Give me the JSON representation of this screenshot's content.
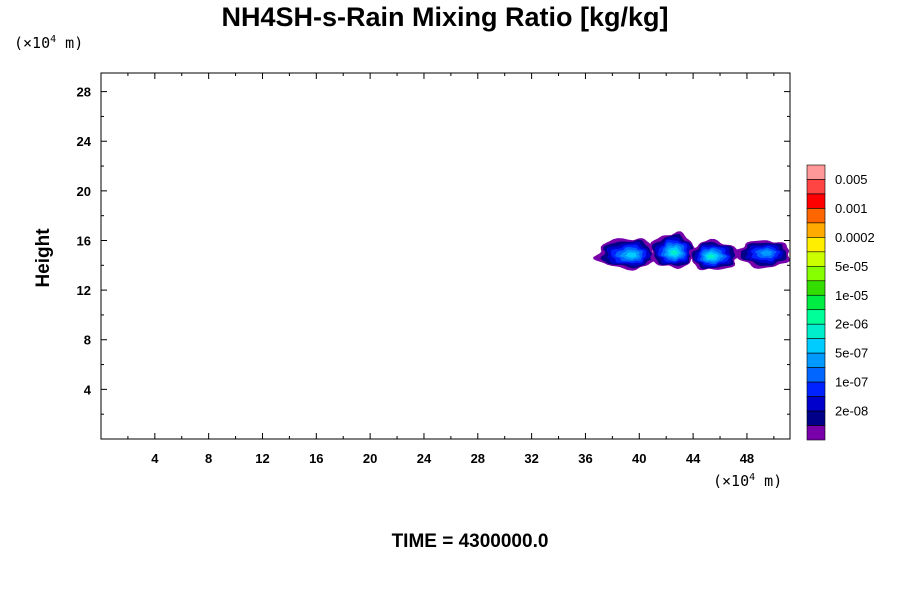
{
  "title": "NH4SH-s-Rain Mixing Ratio [kg/kg]",
  "y_unit_prefix": "(×10",
  "y_unit_exp": "4",
  "y_unit_suffix": " m)",
  "x_unit_prefix": "(×10",
  "x_unit_exp": "4",
  "x_unit_suffix": " m)",
  "ylabel": "Height",
  "time_label": "TIME = 4300000.0",
  "chart_data": {
    "type": "heatmap",
    "title": "NH4SH-s-Rain Mixing Ratio [kg/kg]",
    "xlabel": "",
    "ylabel": "Height",
    "xlim": [
      0,
      51.2
    ],
    "ylim": [
      0,
      29.5
    ],
    "x_ticks": [
      4,
      8,
      12,
      16,
      20,
      24,
      28,
      32,
      36,
      40,
      44,
      48
    ],
    "y_ticks": [
      4,
      8,
      12,
      16,
      20,
      24,
      28
    ],
    "colorbar": {
      "labels": [
        "0.005",
        "0.001",
        "0.0002",
        "5e-05",
        "1e-05",
        "2e-06",
        "5e-07",
        "1e-07",
        "2e-08"
      ],
      "colors": [
        "#ff9999",
        "#ff4444",
        "#ff0000",
        "#ff6600",
        "#ffaa00",
        "#ffee00",
        "#ccff00",
        "#88ff00",
        "#33dd00",
        "#00ee44",
        "#00ff99",
        "#00eecc",
        "#00ccff",
        "#0099ff",
        "#0066ff",
        "#0022ff",
        "#0000cc",
        "#000088",
        "#7700aa"
      ]
    },
    "blobs": [
      {
        "x0": 36.8,
        "x1": 41.2,
        "y0": 13.7,
        "y1": 16.2,
        "core_x": 39.5,
        "core_y": 14.8,
        "peak": 6
      },
      {
        "x0": 40.8,
        "x1": 44.2,
        "y0": 13.8,
        "y1": 16.6,
        "core_x": 42.6,
        "core_y": 15.0,
        "peak": 7
      },
      {
        "x0": 43.8,
        "x1": 47.4,
        "y0": 13.6,
        "y1": 16.0,
        "core_x": 45.3,
        "core_y": 14.7,
        "peak": 7
      },
      {
        "x0": 47.2,
        "x1": 51.2,
        "y0": 13.8,
        "y1": 16.0,
        "core_x": 49.5,
        "core_y": 15.0,
        "peak": 5
      }
    ]
  }
}
